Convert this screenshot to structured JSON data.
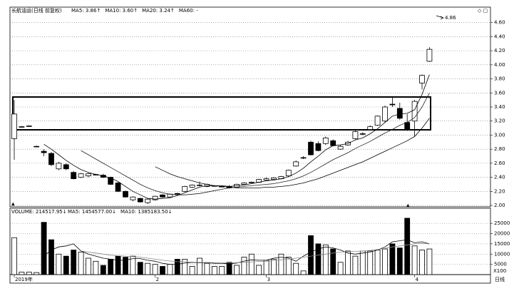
{
  "chart_data": {
    "type": "candlestick",
    "title": "长航油运(日线 前复权)",
    "annotation": "4.86",
    "categories": [
      "2019年",
      null,
      null,
      null,
      null,
      null,
      null,
      null,
      null,
      null,
      null,
      null,
      null,
      null,
      null,
      null,
      null,
      null,
      null,
      "2",
      null,
      null,
      null,
      null,
      null,
      null,
      null,
      null,
      null,
      null,
      null,
      null,
      null,
      null,
      "3",
      null,
      null,
      null,
      null,
      null,
      null,
      null,
      null,
      null,
      null,
      null,
      null,
      null,
      null,
      null,
      null,
      null,
      null,
      null,
      "4",
      null,
      null
    ],
    "open": [
      2.95,
      3.12,
      3.13,
      2.84,
      2.77,
      2.74,
      2.52,
      2.58,
      2.47,
      2.4,
      2.42,
      2.44,
      2.43,
      2.4,
      2.32,
      2.2,
      2.08,
      2.1,
      2.04,
      2.08,
      2.15,
      2.12,
      2.17,
      2.2,
      2.26,
      2.29,
      2.27,
      2.28,
      2.27,
      2.27,
      2.26,
      2.3,
      2.33,
      2.33,
      2.36,
      2.37,
      2.38,
      2.42,
      2.56,
      2.68,
      2.9,
      2.88,
      2.88,
      2.92,
      2.8,
      2.86,
      2.95,
      3.02,
      3.08,
      3.14,
      3.2,
      3.44,
      3.38,
      3.18,
      3.2,
      3.74,
      4.05
    ],
    "high": [
      3.5,
      3.13,
      3.14,
      2.85,
      2.8,
      2.76,
      2.62,
      2.6,
      2.49,
      2.46,
      2.46,
      2.45,
      2.45,
      2.41,
      2.33,
      2.21,
      2.13,
      2.11,
      2.1,
      2.14,
      2.16,
      2.17,
      2.18,
      2.28,
      2.3,
      2.34,
      2.31,
      2.29,
      2.28,
      2.29,
      2.31,
      2.33,
      2.34,
      2.38,
      2.4,
      2.4,
      2.42,
      2.51,
      2.64,
      2.7,
      2.92,
      2.91,
      2.98,
      2.94,
      2.86,
      2.92,
      3.07,
      3.04,
      3.14,
      3.28,
      3.42,
      3.55,
      3.46,
      3.3,
      3.5,
      3.86,
      4.25
    ],
    "low": [
      2.65,
      3.11,
      3.12,
      2.83,
      2.7,
      2.56,
      2.5,
      2.5,
      2.37,
      2.39,
      2.4,
      2.43,
      2.39,
      2.29,
      2.19,
      2.11,
      2.06,
      2.04,
      2.02,
      2.07,
      2.11,
      2.11,
      2.15,
      2.19,
      2.25,
      2.27,
      2.26,
      2.27,
      2.26,
      2.24,
      2.25,
      2.29,
      2.32,
      2.32,
      2.35,
      2.36,
      2.37,
      2.41,
      2.55,
      2.66,
      2.71,
      2.77,
      2.86,
      2.84,
      2.79,
      2.85,
      2.94,
      3.0,
      3.07,
      3.13,
      3.18,
      3.4,
      3.22,
      3.06,
      2.98,
      3.65,
      4.04
    ],
    "close": [
      3.3,
      3.12,
      3.13,
      2.84,
      2.75,
      2.58,
      2.6,
      2.52,
      2.38,
      2.45,
      2.45,
      2.44,
      2.4,
      2.3,
      2.2,
      2.12,
      2.12,
      2.05,
      2.09,
      2.13,
      2.12,
      2.16,
      2.16,
      2.27,
      2.29,
      2.29,
      2.3,
      2.28,
      2.27,
      2.25,
      2.3,
      2.32,
      2.33,
      2.37,
      2.38,
      2.39,
      2.41,
      2.5,
      2.62,
      2.68,
      2.72,
      2.78,
      2.96,
      2.85,
      2.84,
      2.9,
      3.05,
      3.02,
      3.12,
      3.27,
      3.4,
      3.43,
      3.24,
      3.08,
      3.48,
      3.85,
      4.22
    ],
    "series": [
      {
        "name": "MA5: 3.86↑",
        "color": "#000000",
        "values": [
          null,
          null,
          null,
          null,
          2.87,
          2.8,
          2.72,
          2.64,
          2.57,
          2.51,
          2.47,
          2.44,
          2.42,
          2.39,
          2.34,
          2.27,
          2.2,
          2.15,
          2.1,
          2.09,
          2.1,
          2.11,
          2.14,
          2.18,
          2.22,
          2.26,
          2.28,
          2.28,
          2.28,
          2.27,
          2.28,
          2.29,
          2.31,
          2.33,
          2.35,
          2.36,
          2.38,
          2.41,
          2.46,
          2.53,
          2.62,
          2.7,
          2.79,
          2.85,
          2.86,
          2.88,
          2.93,
          2.96,
          3.02,
          3.09,
          3.18,
          3.27,
          3.3,
          3.31,
          3.36,
          3.58,
          3.86
        ]
      },
      {
        "name": "MA10: 3.60↑",
        "color": "#222222",
        "values": [
          null,
          null,
          null,
          null,
          null,
          null,
          null,
          null,
          null,
          2.78,
          2.72,
          2.66,
          2.6,
          2.54,
          2.48,
          2.42,
          2.36,
          2.3,
          2.25,
          2.21,
          2.18,
          2.16,
          2.15,
          2.15,
          2.16,
          2.17,
          2.19,
          2.21,
          2.23,
          2.25,
          2.26,
          2.27,
          2.28,
          2.29,
          2.3,
          2.31,
          2.33,
          2.35,
          2.38,
          2.42,
          2.47,
          2.53,
          2.59,
          2.65,
          2.7,
          2.75,
          2.81,
          2.86,
          2.91,
          2.97,
          3.03,
          3.08,
          3.14,
          3.18,
          3.25,
          3.4,
          3.6
        ]
      },
      {
        "name": "MA20: 3.24↑",
        "color": "#000000",
        "values": [
          null,
          null,
          null,
          null,
          null,
          null,
          null,
          null,
          null,
          null,
          null,
          null,
          null,
          null,
          null,
          null,
          null,
          null,
          null,
          2.55,
          2.5,
          2.45,
          2.41,
          2.38,
          2.35,
          2.32,
          2.3,
          2.28,
          2.27,
          2.26,
          2.25,
          2.25,
          2.25,
          2.25,
          2.26,
          2.26,
          2.27,
          2.28,
          2.3,
          2.32,
          2.35,
          2.38,
          2.42,
          2.46,
          2.5,
          2.54,
          2.58,
          2.62,
          2.67,
          2.72,
          2.77,
          2.82,
          2.87,
          2.92,
          2.98,
          3.1,
          3.24
        ]
      },
      {
        "name": "MA60: -",
        "color": "#000000",
        "values": [
          null,
          null,
          null,
          null,
          null,
          null,
          null,
          null,
          null,
          null,
          null,
          null,
          null,
          null,
          null,
          null,
          null,
          null,
          null,
          null,
          null,
          null,
          null,
          null,
          null,
          null,
          null,
          null,
          null,
          null,
          null,
          null,
          null,
          null,
          null,
          null,
          null,
          null,
          null,
          null,
          null,
          null,
          null,
          null,
          null,
          null,
          null,
          null,
          null,
          null,
          null,
          null,
          null,
          null,
          null,
          null,
          null
        ]
      }
    ],
    "ylim": [
      1.98,
      4.82
    ],
    "yticks": [
      {
        "value": 4.6,
        "label": "4.60"
      },
      {
        "value": 4.4,
        "label": "4.40"
      },
      {
        "value": 4.2,
        "label": "4.20"
      },
      {
        "value": 4.0,
        "label": "4.00"
      },
      {
        "value": 3.8,
        "label": "3.80"
      },
      {
        "value": 3.6,
        "label": "3.60"
      },
      {
        "value": 3.4,
        "label": "3.40"
      },
      {
        "value": 3.2,
        "label": "3.20"
      },
      {
        "value": 3.0,
        "label": "3.00"
      },
      {
        "value": 2.8,
        "label": "2.80"
      },
      {
        "value": 2.6,
        "label": "2.60"
      },
      {
        "value": 2.4,
        "label": "2.40"
      },
      {
        "value": 2.2,
        "label": "2.20"
      },
      {
        "value": 2.0,
        "label": "2.00"
      }
    ],
    "grid": true,
    "volume": {
      "title": "VOLUME: 214517.95↓",
      "unit": "X100",
      "period": "日线",
      "values": [
        18000,
        1200,
        1200,
        1000,
        25500,
        17000,
        10000,
        9000,
        12000,
        11000,
        8000,
        6500,
        4500,
        7500,
        9000,
        8500,
        9000,
        6000,
        5500,
        5000,
        4000,
        5000,
        7500,
        7500,
        4000,
        8000,
        5500,
        4000,
        4000,
        6000,
        4500,
        8500,
        10000,
        4500,
        7000,
        7500,
        10000,
        8500,
        5500,
        1800,
        19000,
        15000,
        14500,
        12500,
        6000,
        11500,
        9000,
        11500,
        11500,
        12000,
        12500,
        15000,
        13000,
        27500,
        14000,
        12000,
        12500
      ],
      "series": [
        {
          "name": "MA5: 1454577.00↓",
          "color": "#000000",
          "values": [
            null,
            null,
            null,
            null,
            9000,
            12000,
            13500,
            14000,
            15000,
            11500,
            10000,
            9000,
            8000,
            7500,
            7000,
            7000,
            7800,
            7800,
            7000,
            6500,
            5500,
            5000,
            5000,
            5600,
            6000,
            5800,
            5800,
            5500,
            5500,
            5300,
            5600,
            6600,
            7200,
            7000,
            7000,
            8000,
            8500,
            8000,
            6500,
            9000,
            11000,
            12500,
            13500,
            13000,
            12000,
            10500,
            10000,
            10500,
            11000,
            12000,
            13500,
            16000,
            16500,
            17000,
            15500,
            16000,
            15000
          ]
        },
        {
          "name": "MA10: 1385183.50↓",
          "color": "#888888",
          "values": [
            null,
            null,
            null,
            null,
            null,
            null,
            null,
            null,
            null,
            11500,
            11000,
            10500,
            10000,
            9500,
            9200,
            9000,
            8800,
            8500,
            8000,
            7500,
            7000,
            6600,
            6300,
            6200,
            6100,
            6000,
            5900,
            5800,
            5700,
            5700,
            5800,
            6000,
            6200,
            6400,
            6500,
            6800,
            7200,
            7500,
            8000,
            8500,
            9000,
            9500,
            10000,
            10500,
            11000,
            11200,
            11300,
            11500,
            11800,
            12200,
            12800,
            13500,
            14000,
            14500,
            15000,
            15200,
            15000
          ]
        }
      ],
      "ylim": [
        0,
        32000
      ],
      "yticks": [
        25000,
        20000,
        15000,
        10000,
        5000
      ]
    }
  }
}
